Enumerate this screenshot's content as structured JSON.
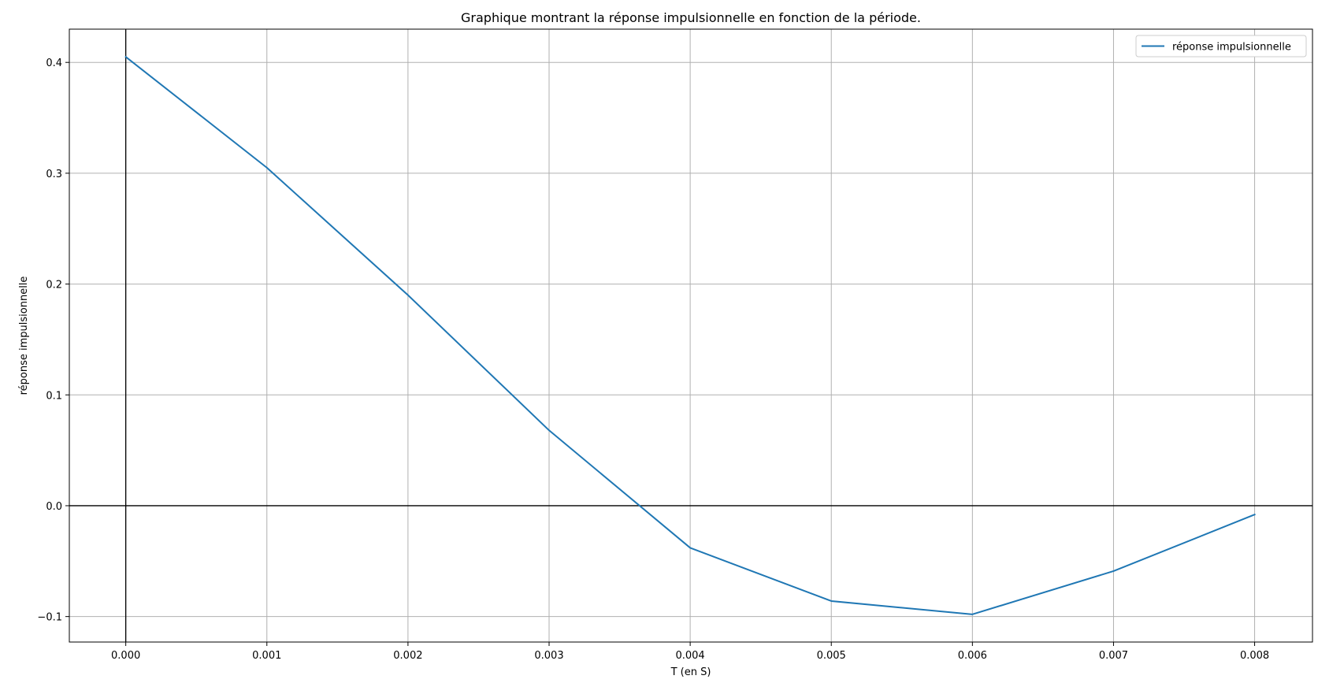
{
  "chart_data": {
    "type": "line",
    "title": "Graphique montrant la réponse impulsionnelle en fonction de la période.",
    "xlabel": "T (en S)",
    "ylabel": "réponse impulsionnelle",
    "xlim": [
      -0.0004,
      0.00841
    ],
    "ylim": [
      -0.123,
      0.43
    ],
    "x_ticks": [
      0.0,
      0.001,
      0.002,
      0.003,
      0.004,
      0.005,
      0.006,
      0.007,
      0.008
    ],
    "x_tick_labels": [
      "0.000",
      "0.001",
      "0.002",
      "0.003",
      "0.004",
      "0.005",
      "0.006",
      "0.007",
      "0.008"
    ],
    "y_ticks": [
      -0.1,
      0.0,
      0.1,
      0.2,
      0.3,
      0.4
    ],
    "y_tick_labels": [
      "−0.1",
      "0.0",
      "0.1",
      "0.2",
      "0.3",
      "0.4"
    ],
    "grid": true,
    "reference_lines": {
      "x": 0,
      "y": 0
    },
    "legend_position": "top-right",
    "series": [
      {
        "name": "réponse impulsionnelle",
        "color": "#1f77b4",
        "x": [
          0.0,
          0.001,
          0.002,
          0.003,
          0.004,
          0.005,
          0.006,
          0.007,
          0.008
        ],
        "y": [
          0.405,
          0.305,
          0.19,
          0.068,
          -0.038,
          -0.086,
          -0.098,
          -0.059,
          -0.008
        ]
      }
    ]
  }
}
